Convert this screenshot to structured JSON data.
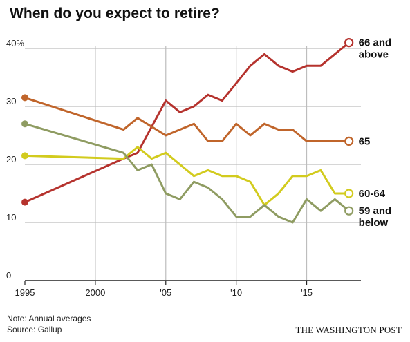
{
  "title": "When do you expect to retire?",
  "note": "Note: Annual averages",
  "source": "Source: Gallup",
  "credit": "THE WASHINGTON POST",
  "colors": {
    "66_and_above": "#b5322d",
    "65": "#c0652b",
    "60_64": "#d2cb1e",
    "59_and_below": "#8f9c62",
    "grid": "#bdbdbd",
    "axis": "#222222"
  },
  "chart_data": {
    "type": "line",
    "title": "When do you expect to retire?",
    "x_ticks": [
      1995,
      2000,
      2005,
      2010,
      2015
    ],
    "x_tick_labels": [
      "1995",
      "2000",
      "'05",
      "'10",
      "'15"
    ],
    "y_ticks": [
      0,
      10,
      20,
      30,
      40
    ],
    "y_tick_labels": [
      "0",
      "10",
      "20",
      "30",
      "40%"
    ],
    "xlim": [
      1995,
      2019
    ],
    "ylim": [
      0,
      42
    ],
    "grid": true,
    "series": [
      {
        "name": "66 and above",
        "label_lines": [
          "66 and",
          "above"
        ],
        "color_key": "66_and_above",
        "points": [
          [
            1995,
            13.5
          ],
          [
            2002,
            21
          ],
          [
            2003,
            22
          ],
          [
            2005,
            31
          ],
          [
            2006,
            29
          ],
          [
            2007,
            30
          ],
          [
            2008,
            32
          ],
          [
            2009,
            31
          ],
          [
            2010,
            34
          ],
          [
            2011,
            37
          ],
          [
            2012,
            39
          ],
          [
            2013,
            37
          ],
          [
            2014,
            36
          ],
          [
            2015,
            37
          ],
          [
            2016,
            37
          ],
          [
            2018,
            41
          ]
        ]
      },
      {
        "name": "65",
        "label_lines": [
          "65"
        ],
        "color_key": "65",
        "points": [
          [
            1995,
            31.5
          ],
          [
            2002,
            26
          ],
          [
            2003,
            28
          ],
          [
            2005,
            25
          ],
          [
            2007,
            27
          ],
          [
            2008,
            24
          ],
          [
            2009,
            24
          ],
          [
            2010,
            27
          ],
          [
            2011,
            25
          ],
          [
            2012,
            27
          ],
          [
            2013,
            26
          ],
          [
            2014,
            26
          ],
          [
            2015,
            24
          ],
          [
            2016,
            24
          ],
          [
            2018,
            24
          ]
        ]
      },
      {
        "name": "60-64",
        "label_lines": [
          "60-64"
        ],
        "color_key": "60_64",
        "points": [
          [
            1995,
            21.5
          ],
          [
            2002,
            21
          ],
          [
            2003,
            23
          ],
          [
            2004,
            21
          ],
          [
            2005,
            22
          ],
          [
            2006,
            20
          ],
          [
            2007,
            18
          ],
          [
            2008,
            19
          ],
          [
            2009,
            18
          ],
          [
            2010,
            18
          ],
          [
            2011,
            17
          ],
          [
            2012,
            13
          ],
          [
            2013,
            15
          ],
          [
            2014,
            18
          ],
          [
            2015,
            18
          ],
          [
            2016,
            19
          ],
          [
            2017,
            15
          ],
          [
            2018,
            15
          ]
        ]
      },
      {
        "name": "59 and below",
        "label_lines": [
          "59 and",
          "below"
        ],
        "color_key": "59_and_below",
        "points": [
          [
            1995,
            27
          ],
          [
            2002,
            22
          ],
          [
            2003,
            19
          ],
          [
            2004,
            20
          ],
          [
            2005,
            15
          ],
          [
            2006,
            14
          ],
          [
            2007,
            17
          ],
          [
            2008,
            16
          ],
          [
            2009,
            14
          ],
          [
            2010,
            11
          ],
          [
            2011,
            11
          ],
          [
            2012,
            13
          ],
          [
            2013,
            11
          ],
          [
            2014,
            10
          ],
          [
            2015,
            14
          ],
          [
            2016,
            12
          ],
          [
            2017,
            14
          ],
          [
            2018,
            12
          ]
        ]
      }
    ]
  }
}
